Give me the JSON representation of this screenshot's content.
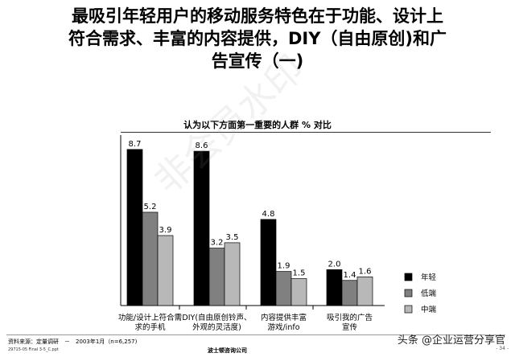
{
  "title_lines": [
    "最吸引年轻用户的移动服务特色在于功能、设计上",
    "符合需求、丰富的内容提供，DIY（自由原创)和广",
    "告宣传（一)"
  ],
  "watermark": "非会员水印",
  "footer": {
    "source": "资料来源：定量调研　－　2003年1月（n=6,257)",
    "file": "29715-05 Final 3-5_C.ppt",
    "company": "波士顿咨询公司",
    "toutiao": "头条 @企业运营分享官",
    "page": "- 34 -"
  },
  "colors": {
    "young": "#000000",
    "low": "#808080",
    "mid": "#b8b8b8"
  },
  "chart_data": {
    "type": "bar",
    "title": "认为以下方面第一重要的人群 % 对比",
    "categories": [
      [
        "功能/设计上符合需",
        "求的手机"
      ],
      [
        "DIY(自由原创铃声、",
        "外观的灵活度)"
      ],
      [
        "内容提供丰富",
        "游戏/info"
      ],
      [
        "吸引我的广告",
        "宣传"
      ]
    ],
    "series": [
      {
        "name": "年轻",
        "values": [
          8.7,
          8.6,
          4.8,
          2.0
        ]
      },
      {
        "name": "低端",
        "values": [
          5.2,
          3.2,
          1.9,
          1.4
        ]
      },
      {
        "name": "中端",
        "values": [
          3.9,
          3.5,
          1.5,
          1.6
        ]
      }
    ],
    "value_labels": [
      [
        "8.7",
        "8.6",
        "4.8",
        "2.0"
      ],
      [
        "5.2",
        "3.2",
        "1.9",
        "1.4"
      ],
      [
        "3.9",
        "3.5",
        "1.5",
        "1.6"
      ]
    ],
    "ylim": [
      0,
      9.5
    ],
    "grid": false,
    "legend_position": "right"
  }
}
